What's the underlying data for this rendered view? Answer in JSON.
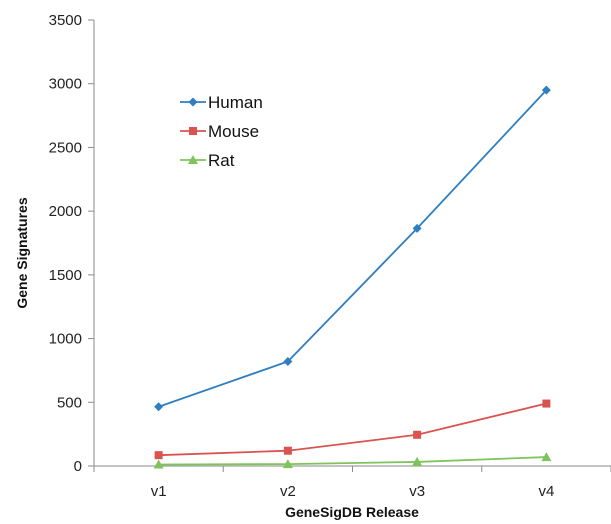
{
  "chart_data": {
    "type": "line",
    "title": "",
    "xlabel": "GeneSigDB Release",
    "ylabel": "Gene Signatures",
    "categories": [
      "v1",
      "v2",
      "v3",
      "v4"
    ],
    "ylim": [
      0,
      3500
    ],
    "yticks": [
      "0",
      "500",
      "1000",
      "1500",
      "2000",
      "2500",
      "3000",
      "3500"
    ],
    "grid": false,
    "legend_position": "top-left",
    "series": [
      {
        "name": "Human",
        "values": [
          465,
          820,
          1865,
          2950
        ],
        "color": "#2f7ebf",
        "marker": "diamond"
      },
      {
        "name": "Mouse",
        "values": [
          85,
          120,
          245,
          490
        ],
        "color": "#d9534f",
        "marker": "square"
      },
      {
        "name": "Rat",
        "values": [
          12,
          15,
          32,
          70
        ],
        "color": "#7fc45a",
        "marker": "triangle"
      }
    ]
  }
}
